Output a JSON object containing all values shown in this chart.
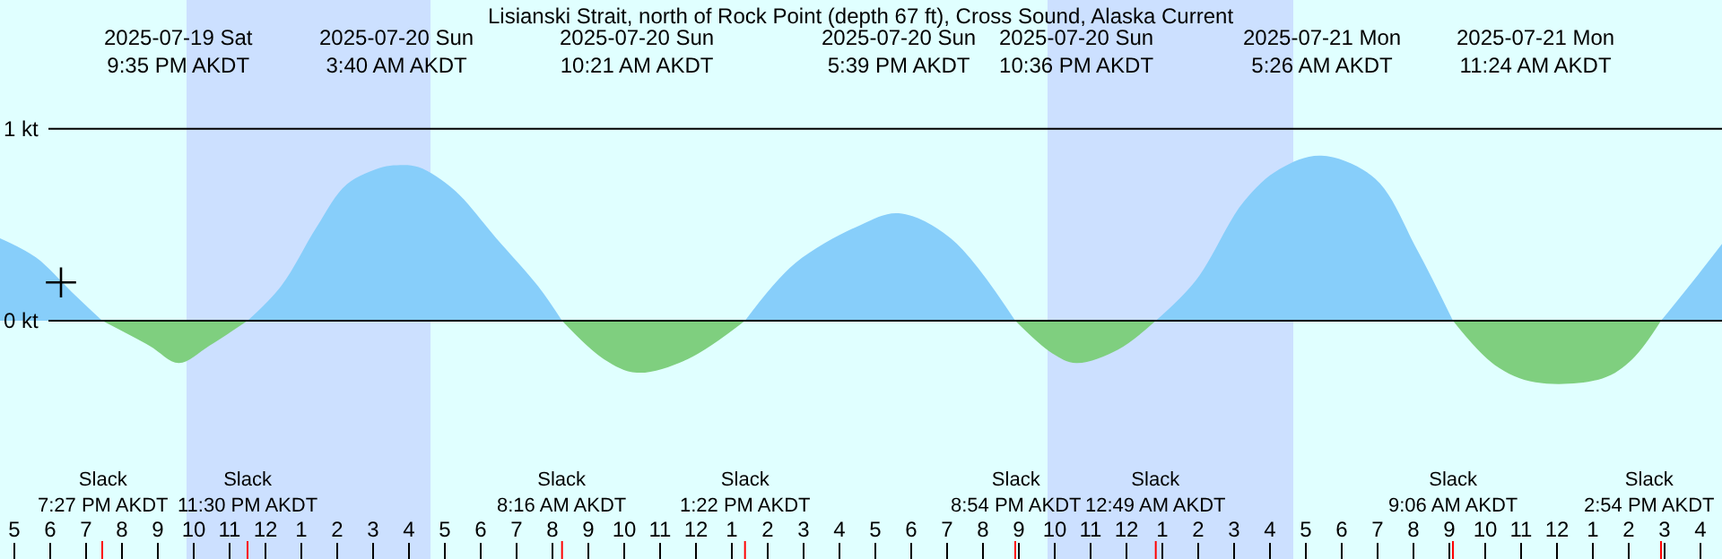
{
  "chart_data": {
    "type": "area",
    "title": "Lisianski Strait, north of Rock Point (depth 67 ft), Cross Sound, Alaska Current",
    "x": [
      "2025-07-19T16:36",
      "2025-07-19T17:36",
      "2025-07-19T18:36",
      "2025-07-19T19:27",
      "2025-07-19T20:46",
      "2025-07-19T21:35",
      "2025-07-19T22:26",
      "2025-07-19T23:30",
      "2025-07-20T00:26",
      "2025-07-20T01:26",
      "2025-07-20T02:16",
      "2025-07-20T03:16",
      "2025-07-20T03:40",
      "2025-07-20T04:16",
      "2025-07-20T05:16",
      "2025-07-20T06:26",
      "2025-07-20T07:36",
      "2025-07-20T08:16",
      "2025-07-20T09:26",
      "2025-07-20T10:21",
      "2025-07-20T11:46",
      "2025-07-20T13:22",
      "2025-07-20T14:46",
      "2025-07-20T16:36",
      "2025-07-20T17:39",
      "2025-07-20T19:06",
      "2025-07-20T20:54",
      "2025-07-20T21:56",
      "2025-07-20T22:36",
      "2025-07-20T23:46",
      "2025-07-21T00:49",
      "2025-07-21T01:56",
      "2025-07-21T03:16",
      "2025-07-21T04:16",
      "2025-07-21T05:26",
      "2025-07-21T06:56",
      "2025-07-21T08:06",
      "2025-07-21T09:06",
      "2025-07-21T10:16",
      "2025-07-21T11:24",
      "2025-07-21T13:16",
      "2025-07-21T14:06",
      "2025-07-21T14:54",
      "2025-07-21T15:56",
      "2025-07-21T16:36"
    ],
    "series": [
      {
        "color": "#87cefa",
        "values": [
          0.43,
          0.33,
          0.15,
          0,
          null,
          null,
          null,
          0,
          0.18,
          0.49,
          0.71,
          0.8,
          0.81,
          0.8,
          0.68,
          0.43,
          0.18,
          0,
          null,
          null,
          null,
          0,
          0.3,
          0.5,
          0.56,
          0.43,
          0,
          null,
          null,
          null,
          0,
          0.21,
          0.62,
          0.79,
          0.86,
          0.74,
          0.37,
          0,
          null,
          null,
          null,
          null,
          0,
          0.24,
          0.4
        ]
      },
      {
        "color": "#7fcf7f",
        "values": [
          null,
          null,
          null,
          0,
          -0.13,
          -0.22,
          -0.13,
          0,
          null,
          null,
          null,
          null,
          null,
          null,
          null,
          null,
          null,
          0,
          -0.2,
          -0.27,
          -0.2,
          0,
          null,
          null,
          null,
          null,
          0,
          -0.17,
          -0.22,
          -0.15,
          0,
          null,
          null,
          null,
          null,
          null,
          null,
          0,
          -0.23,
          -0.32,
          -0.3,
          -0.2,
          0,
          null,
          null
        ]
      },
      {
        "type": "scatter",
        "marker": "cross",
        "color": "#000000",
        "x": [
          "2025-07-19T18:18"
        ],
        "values": [
          0.2
        ]
      }
    ],
    "xlim": [
      "2025-07-19T16:36",
      "2025-07-21T16:36"
    ],
    "xticks": [
      {
        "value": "2025-07-19T17:00",
        "label": "5"
      },
      {
        "value": "2025-07-19T18:00",
        "label": "6"
      },
      {
        "value": "2025-07-19T19:00",
        "label": "7"
      },
      {
        "value": "2025-07-19T20:00",
        "label": "8"
      },
      {
        "value": "2025-07-19T21:00",
        "label": "9"
      },
      {
        "value": "2025-07-19T22:00",
        "label": "10"
      },
      {
        "value": "2025-07-19T23:00",
        "label": "11"
      },
      {
        "value": "2025-07-20T00:00",
        "label": "12"
      },
      {
        "value": "2025-07-20T01:00",
        "label": "1"
      },
      {
        "value": "2025-07-20T02:00",
        "label": "2"
      },
      {
        "value": "2025-07-20T03:00",
        "label": "3"
      },
      {
        "value": "2025-07-20T04:00",
        "label": "4"
      },
      {
        "value": "2025-07-20T05:00",
        "label": "5"
      },
      {
        "value": "2025-07-20T06:00",
        "label": "6"
      },
      {
        "value": "2025-07-20T07:00",
        "label": "7"
      },
      {
        "value": "2025-07-20T08:00",
        "label": "8"
      },
      {
        "value": "2025-07-20T09:00",
        "label": "9"
      },
      {
        "value": "2025-07-20T10:00",
        "label": "10"
      },
      {
        "value": "2025-07-20T11:00",
        "label": "11"
      },
      {
        "value": "2025-07-20T12:00",
        "label": "12"
      },
      {
        "value": "2025-07-20T13:00",
        "label": "1"
      },
      {
        "value": "2025-07-20T14:00",
        "label": "2"
      },
      {
        "value": "2025-07-20T15:00",
        "label": "3"
      },
      {
        "value": "2025-07-20T16:00",
        "label": "4"
      },
      {
        "value": "2025-07-20T17:00",
        "label": "5"
      },
      {
        "value": "2025-07-20T18:00",
        "label": "6"
      },
      {
        "value": "2025-07-20T19:00",
        "label": "7"
      },
      {
        "value": "2025-07-20T20:00",
        "label": "8"
      },
      {
        "value": "2025-07-20T21:00",
        "label": "9"
      },
      {
        "value": "2025-07-20T22:00",
        "label": "10"
      },
      {
        "value": "2025-07-20T23:00",
        "label": "11"
      },
      {
        "value": "2025-07-21T00:00",
        "label": "12"
      },
      {
        "value": "2025-07-21T01:00",
        "label": "1"
      },
      {
        "value": "2025-07-21T02:00",
        "label": "2"
      },
      {
        "value": "2025-07-21T03:00",
        "label": "3"
      },
      {
        "value": "2025-07-21T04:00",
        "label": "4"
      },
      {
        "value": "2025-07-21T05:00",
        "label": "5"
      },
      {
        "value": "2025-07-21T06:00",
        "label": "6"
      },
      {
        "value": "2025-07-21T07:00",
        "label": "7"
      },
      {
        "value": "2025-07-21T08:00",
        "label": "8"
      },
      {
        "value": "2025-07-21T09:00",
        "label": "9"
      },
      {
        "value": "2025-07-21T10:00",
        "label": "10"
      },
      {
        "value": "2025-07-21T11:00",
        "label": "11"
      },
      {
        "value": "2025-07-21T12:00",
        "label": "12"
      },
      {
        "value": "2025-07-21T13:00",
        "label": "1"
      },
      {
        "value": "2025-07-21T14:00",
        "label": "2"
      },
      {
        "value": "2025-07-21T15:00",
        "label": "3"
      },
      {
        "value": "2025-07-21T16:00",
        "label": "4"
      }
    ],
    "ylim": [
      -1.24,
      1.67
    ],
    "yticks": [
      {
        "value": 1,
        "label": "1 kt"
      },
      {
        "value": 0,
        "label": "0 kt"
      }
    ],
    "grid": "y",
    "bands": [
      {
        "axis": "x",
        "from": "2025-07-19T21:48",
        "to": "2025-07-20T04:36",
        "color": "#cce0ff"
      },
      {
        "axis": "x",
        "from": "2025-07-20T21:48",
        "to": "2025-07-21T04:39",
        "color": "#cce0ff"
      }
    ],
    "annotations": [
      "2025-07-19 Sat\n9:35 PM AKDT",
      "2025-07-20 Sun\n3:40 AM AKDT",
      "2025-07-20 Sun\n10:21 AM AKDT",
      "2025-07-20 Sun\n5:39 PM AKDT",
      "2025-07-20 Sun\n10:36 PM AKDT",
      "2025-07-21 Mon\n5:26 AM AKDT",
      "2025-07-21 Mon\n11:24 AM AKDT",
      "Slack\n7:27 PM AKDT",
      "Slack\n11:30 PM AKDT",
      "Slack\n8:16 AM AKDT",
      "Slack\n1:22 PM AKDT",
      "Slack\n8:54 PM AKDT",
      "Slack\n12:49 AM AKDT",
      "Slack\n9:06 AM AKDT",
      "Slack\n2:54 PM AKDT"
    ]
  }
}
